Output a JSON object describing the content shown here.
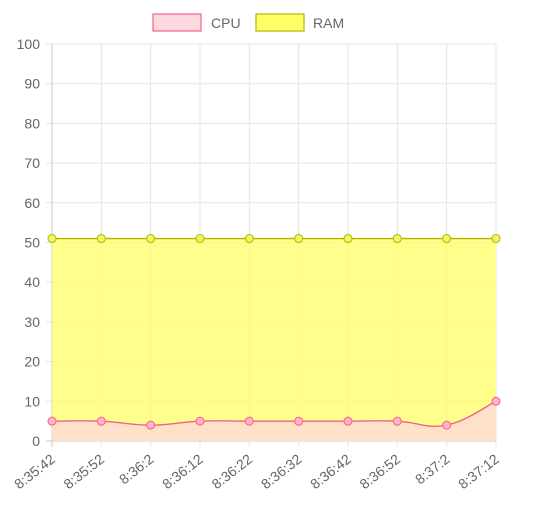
{
  "chart_data": {
    "type": "line",
    "x": [
      "8:35:42",
      "8:35:52",
      "8:36:2",
      "8:36:12",
      "8:36:22",
      "8:36:32",
      "8:36:42",
      "8:36:52",
      "8:37:2",
      "8:37:12"
    ],
    "series": [
      {
        "name": "CPU",
        "values": [
          5,
          5,
          4,
          5,
          5,
          5,
          5,
          5,
          4,
          10
        ],
        "line_color": "#f06386",
        "fill_color": "#ffd7df",
        "point_fill": "#ffb3c4"
      },
      {
        "name": "RAM",
        "values": [
          51,
          51,
          51,
          51,
          51,
          51,
          51,
          51,
          51,
          51
        ],
        "line_color": "#b5b500",
        "fill_color": "#ffff66",
        "point_fill": "#f5f562"
      }
    ],
    "ylim": [
      0,
      100
    ],
    "yticks": [
      0,
      10,
      20,
      30,
      40,
      50,
      60,
      70,
      80,
      90,
      100
    ],
    "grid": true,
    "legend_position": "top",
    "fill": true
  }
}
